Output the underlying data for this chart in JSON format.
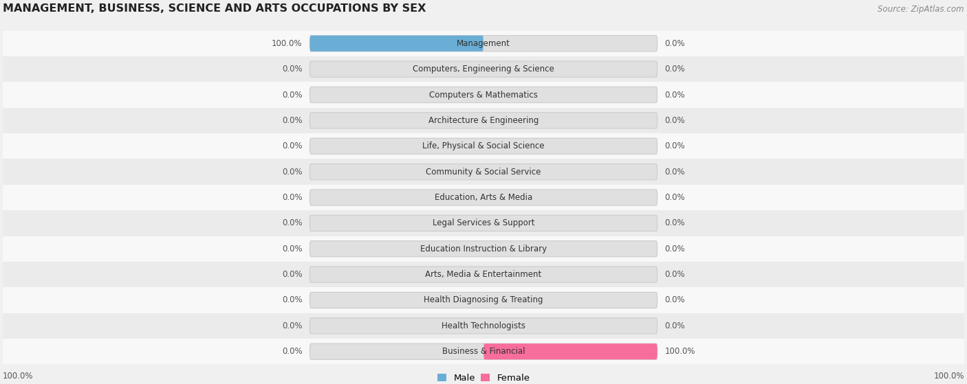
{
  "title": "MANAGEMENT, BUSINESS, SCIENCE AND ARTS OCCUPATIONS BY SEX",
  "source": "Source: ZipAtlas.com",
  "categories": [
    "Management",
    "Computers, Engineering & Science",
    "Computers & Mathematics",
    "Architecture & Engineering",
    "Life, Physical & Social Science",
    "Community & Social Service",
    "Education, Arts & Media",
    "Legal Services & Support",
    "Education Instruction & Library",
    "Arts, Media & Entertainment",
    "Health Diagnosing & Treating",
    "Health Technologists",
    "Business & Financial"
  ],
  "male_values": [
    100.0,
    0.0,
    0.0,
    0.0,
    0.0,
    0.0,
    0.0,
    0.0,
    0.0,
    0.0,
    0.0,
    0.0,
    0.0
  ],
  "female_values": [
    0.0,
    0.0,
    0.0,
    0.0,
    0.0,
    0.0,
    0.0,
    0.0,
    0.0,
    0.0,
    0.0,
    0.0,
    100.0
  ],
  "male_color": "#6aaed6",
  "female_color": "#f76d9b",
  "male_label": "Male",
  "female_label": "Female",
  "bg_color": "#f0f0f0",
  "row_bg_even": "#f8f8f8",
  "row_bg_odd": "#ebebeb",
  "bar_bg_color": "#e0e0e0",
  "bar_height": 0.62,
  "title_fontsize": 11.5,
  "source_fontsize": 8.5,
  "label_fontsize": 8.5,
  "category_fontsize": 8.5
}
